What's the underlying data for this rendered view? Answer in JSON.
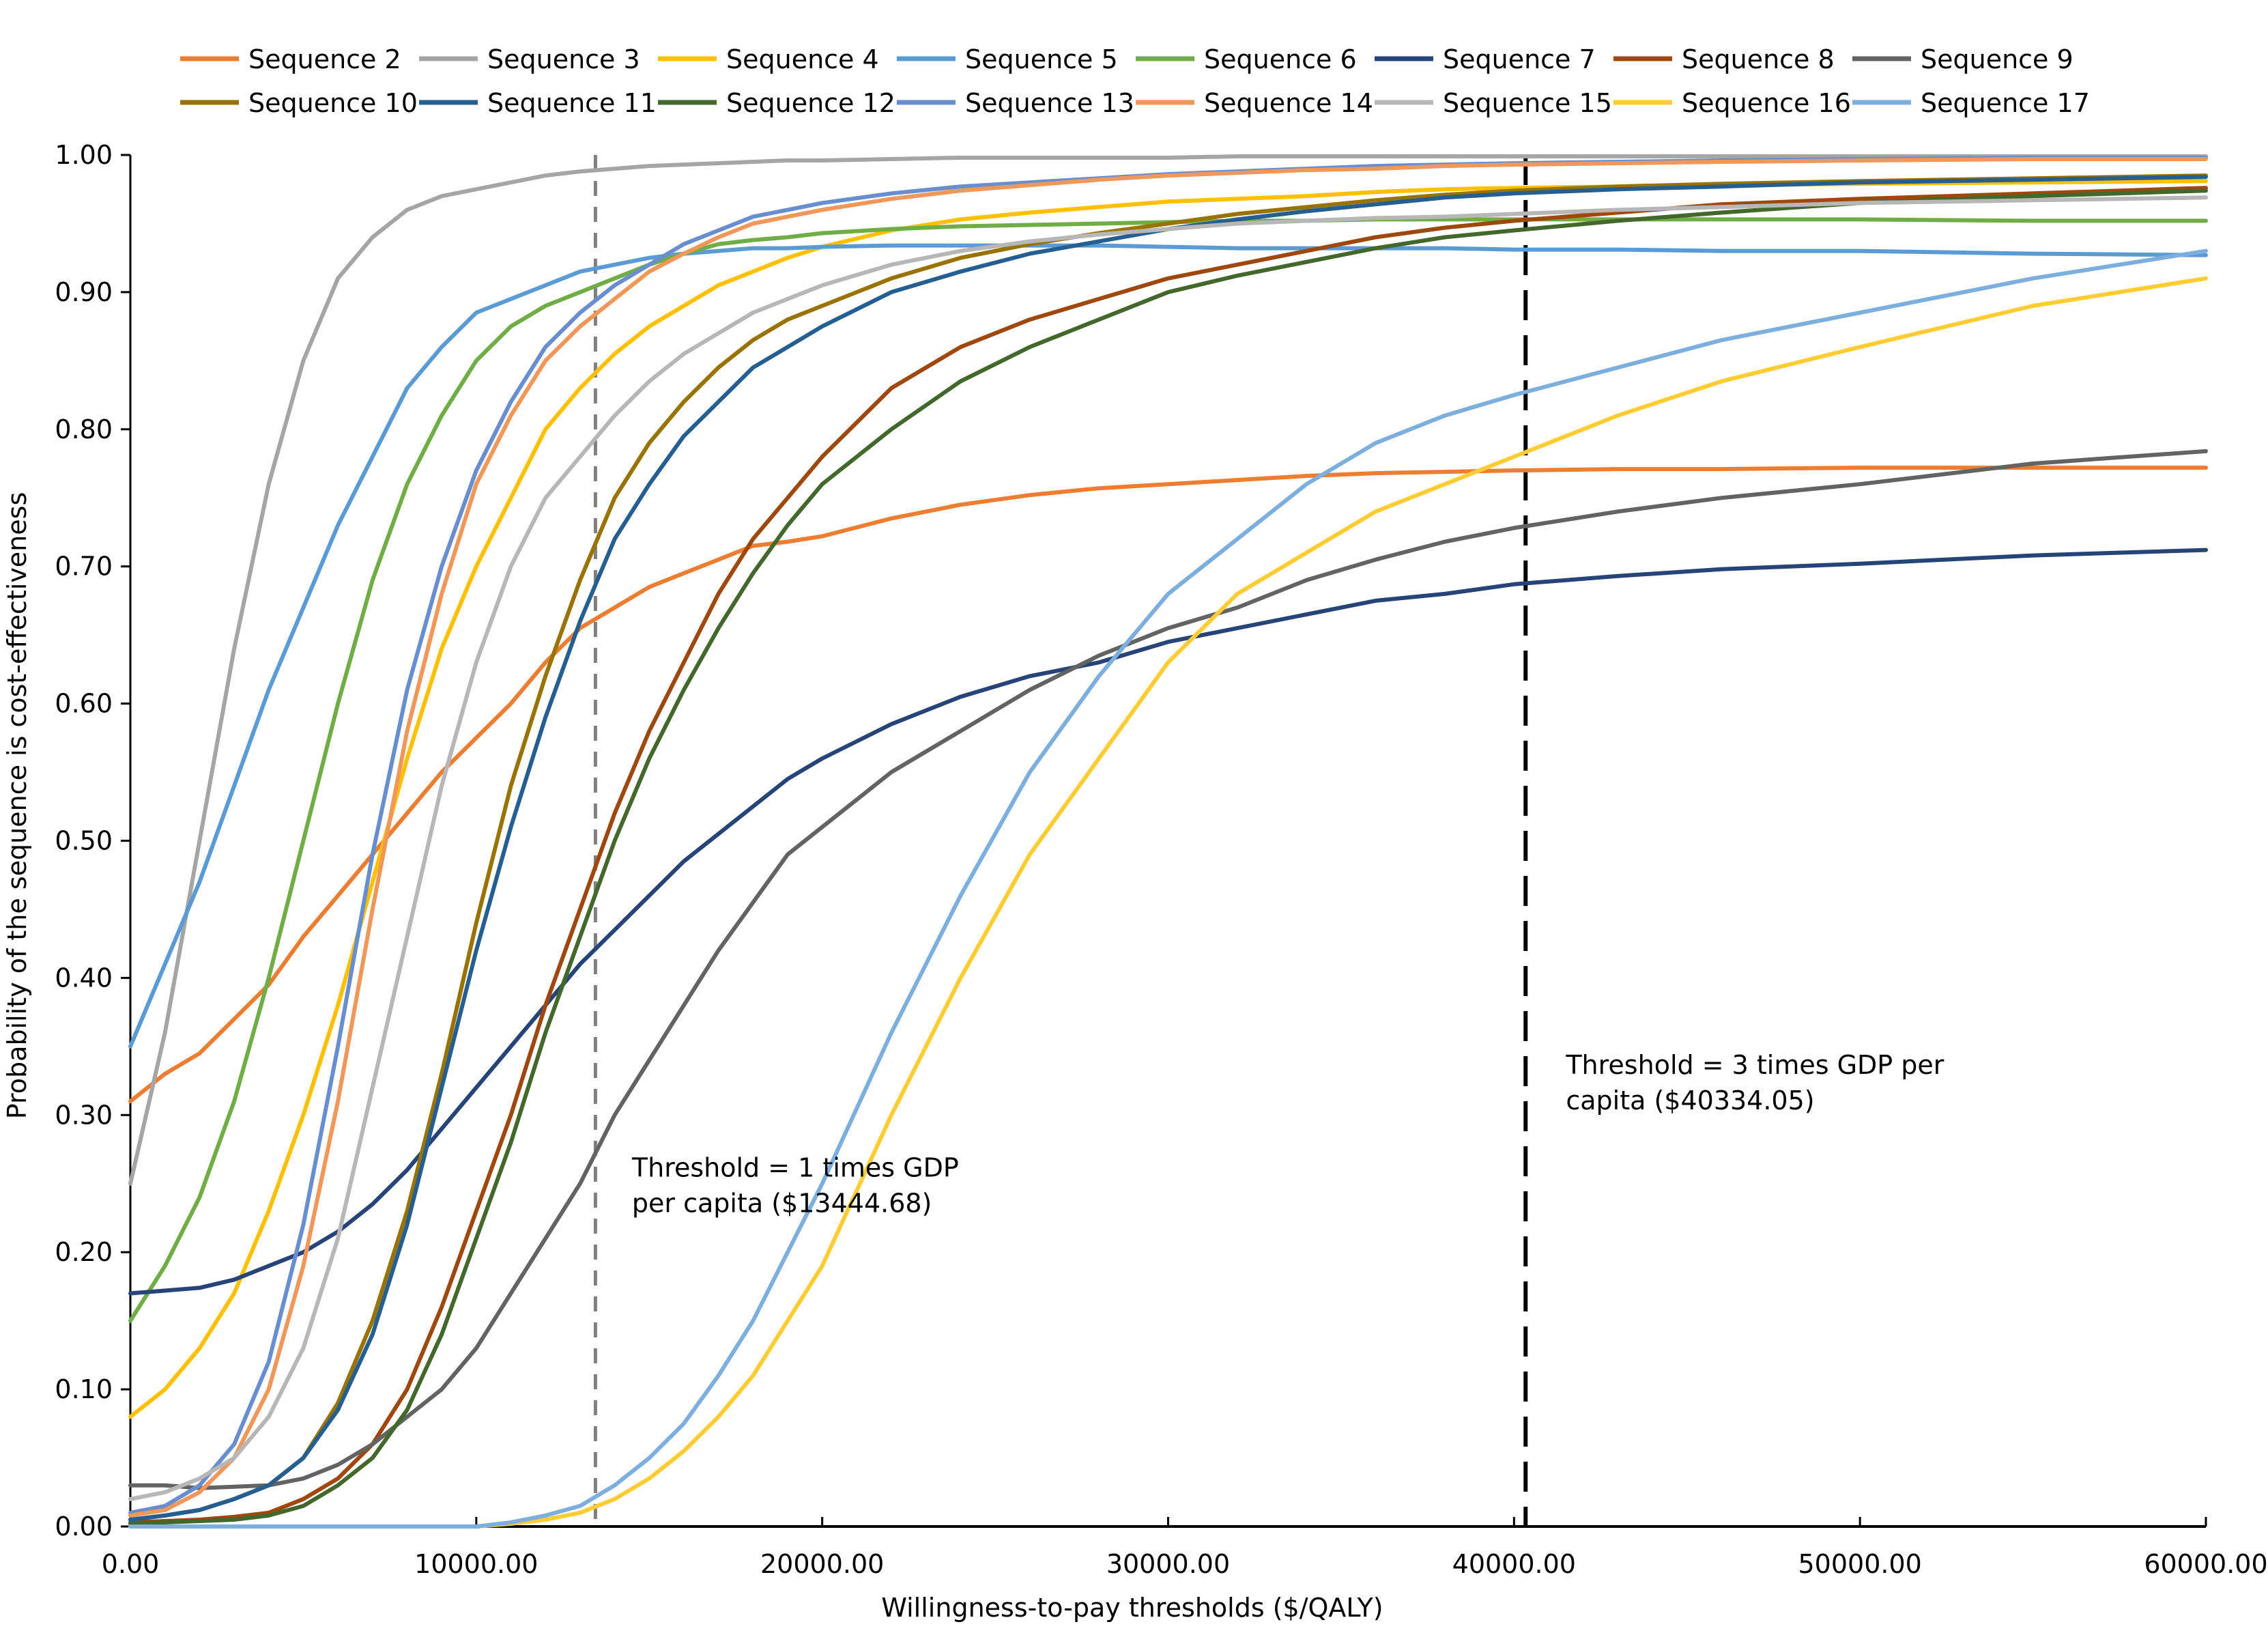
{
  "chart_data": {
    "type": "line",
    "title": "",
    "xlabel": "Willingness-to-pay thresholds ($/QALY)",
    "ylabel": "Probability of the sequence is cost-effectiveness",
    "xlim": [
      0,
      60000
    ],
    "ylim": [
      0,
      1
    ],
    "x_ticks": [
      0,
      10000,
      20000,
      30000,
      40000,
      50000,
      60000
    ],
    "x_tick_labels": [
      "0.00",
      "10000.00",
      "20000.00",
      "30000.00",
      "40000.00",
      "50000.00",
      "60000.00"
    ],
    "y_ticks": [
      0,
      0.1,
      0.2,
      0.3,
      0.4,
      0.5,
      0.6,
      0.7,
      0.8,
      0.9,
      1.0
    ],
    "y_tick_labels": [
      "0.00",
      "0.10",
      "0.20",
      "0.30",
      "0.40",
      "0.50",
      "0.60",
      "0.70",
      "0.80",
      "0.90",
      "1.00"
    ],
    "grid": false,
    "legend_position": "top",
    "x": [
      0,
      1000,
      2000,
      3000,
      4000,
      5000,
      6000,
      7000,
      8000,
      9000,
      10000,
      11000,
      12000,
      13000,
      14000,
      15000,
      16000,
      17000,
      18000,
      19000,
      20000,
      22000,
      24000,
      26000,
      28000,
      30000,
      32000,
      34000,
      36000,
      38000,
      40000,
      43000,
      46000,
      50000,
      55000,
      60000
    ],
    "series": [
      {
        "name": "Sequence 2",
        "color": "#ED7D31",
        "values": [
          0.31,
          0.33,
          0.345,
          0.37,
          0.395,
          0.43,
          0.46,
          0.49,
          0.52,
          0.55,
          0.575,
          0.6,
          0.63,
          0.655,
          0.67,
          0.685,
          0.695,
          0.705,
          0.715,
          0.718,
          0.722,
          0.735,
          0.745,
          0.752,
          0.757,
          0.76,
          0.763,
          0.766,
          0.768,
          0.769,
          0.77,
          0.771,
          0.771,
          0.772,
          0.772,
          0.772
        ]
      },
      {
        "name": "Sequence 3",
        "color": "#A5A5A5",
        "values": [
          0.25,
          0.36,
          0.5,
          0.64,
          0.76,
          0.85,
          0.91,
          0.94,
          0.96,
          0.97,
          0.975,
          0.98,
          0.985,
          0.988,
          0.99,
          0.992,
          0.993,
          0.994,
          0.995,
          0.996,
          0.996,
          0.997,
          0.998,
          0.998,
          0.998,
          0.998,
          0.999,
          0.999,
          0.999,
          0.999,
          0.999,
          0.999,
          0.999,
          0.999,
          0.999,
          0.999
        ]
      },
      {
        "name": "Sequence 4",
        "color": "#FFC000",
        "values": [
          0.08,
          0.1,
          0.13,
          0.17,
          0.23,
          0.3,
          0.38,
          0.47,
          0.56,
          0.64,
          0.7,
          0.75,
          0.8,
          0.83,
          0.855,
          0.875,
          0.89,
          0.905,
          0.915,
          0.925,
          0.933,
          0.945,
          0.953,
          0.958,
          0.962,
          0.966,
          0.968,
          0.97,
          0.973,
          0.975,
          0.976,
          0.977,
          0.978,
          0.979,
          0.98,
          0.981
        ]
      },
      {
        "name": "Sequence 5",
        "color": "#5B9BD5",
        "values": [
          0.35,
          0.41,
          0.47,
          0.54,
          0.61,
          0.67,
          0.73,
          0.78,
          0.83,
          0.86,
          0.885,
          0.895,
          0.905,
          0.915,
          0.92,
          0.925,
          0.928,
          0.93,
          0.932,
          0.932,
          0.933,
          0.934,
          0.934,
          0.934,
          0.934,
          0.933,
          0.932,
          0.932,
          0.932,
          0.932,
          0.931,
          0.931,
          0.93,
          0.93,
          0.928,
          0.927
        ]
      },
      {
        "name": "Sequence 6",
        "color": "#70AD47",
        "values": [
          0.15,
          0.19,
          0.24,
          0.31,
          0.4,
          0.5,
          0.6,
          0.69,
          0.76,
          0.81,
          0.85,
          0.875,
          0.89,
          0.9,
          0.91,
          0.92,
          0.928,
          0.935,
          0.938,
          0.94,
          0.943,
          0.946,
          0.948,
          0.949,
          0.95,
          0.951,
          0.952,
          0.952,
          0.953,
          0.953,
          0.953,
          0.953,
          0.953,
          0.953,
          0.952,
          0.952
        ]
      },
      {
        "name": "Sequence 7",
        "color": "#264478",
        "values": [
          0.17,
          0.172,
          0.174,
          0.18,
          0.19,
          0.2,
          0.215,
          0.235,
          0.26,
          0.29,
          0.32,
          0.35,
          0.38,
          0.41,
          0.435,
          0.46,
          0.485,
          0.505,
          0.525,
          0.545,
          0.56,
          0.585,
          0.605,
          0.62,
          0.63,
          0.645,
          0.655,
          0.665,
          0.675,
          0.68,
          0.687,
          0.693,
          0.698,
          0.702,
          0.708,
          0.712
        ]
      },
      {
        "name": "Sequence 8",
        "color": "#9E480E",
        "values": [
          0.003,
          0.004,
          0.005,
          0.007,
          0.01,
          0.02,
          0.035,
          0.06,
          0.1,
          0.16,
          0.23,
          0.3,
          0.38,
          0.45,
          0.52,
          0.58,
          0.63,
          0.68,
          0.72,
          0.75,
          0.78,
          0.83,
          0.86,
          0.88,
          0.895,
          0.91,
          0.92,
          0.93,
          0.94,
          0.947,
          0.952,
          0.958,
          0.964,
          0.968,
          0.972,
          0.976
        ]
      },
      {
        "name": "Sequence 9",
        "color": "#636363",
        "values": [
          0.03,
          0.03,
          0.028,
          0.029,
          0.03,
          0.035,
          0.045,
          0.06,
          0.08,
          0.1,
          0.13,
          0.17,
          0.21,
          0.25,
          0.3,
          0.34,
          0.38,
          0.42,
          0.455,
          0.49,
          0.51,
          0.55,
          0.58,
          0.61,
          0.635,
          0.655,
          0.67,
          0.69,
          0.705,
          0.718,
          0.728,
          0.74,
          0.75,
          0.76,
          0.775,
          0.784
        ]
      },
      {
        "name": "Sequence 10",
        "color": "#997300",
        "values": [
          0.005,
          0.008,
          0.012,
          0.02,
          0.03,
          0.05,
          0.09,
          0.15,
          0.23,
          0.33,
          0.44,
          0.54,
          0.62,
          0.69,
          0.75,
          0.79,
          0.82,
          0.845,
          0.865,
          0.88,
          0.89,
          0.91,
          0.925,
          0.935,
          0.943,
          0.95,
          0.957,
          0.962,
          0.967,
          0.971,
          0.974,
          0.977,
          0.979,
          0.981,
          0.983,
          0.985
        ]
      },
      {
        "name": "Sequence 11",
        "color": "#255E91",
        "values": [
          0.005,
          0.008,
          0.012,
          0.02,
          0.03,
          0.05,
          0.085,
          0.14,
          0.22,
          0.32,
          0.42,
          0.51,
          0.59,
          0.66,
          0.72,
          0.76,
          0.795,
          0.82,
          0.845,
          0.86,
          0.875,
          0.9,
          0.915,
          0.928,
          0.937,
          0.946,
          0.953,
          0.959,
          0.964,
          0.969,
          0.972,
          0.975,
          0.977,
          0.98,
          0.982,
          0.984
        ]
      },
      {
        "name": "Sequence 12",
        "color": "#43682B",
        "values": [
          0.002,
          0.003,
          0.004,
          0.005,
          0.008,
          0.015,
          0.03,
          0.05,
          0.085,
          0.14,
          0.21,
          0.28,
          0.36,
          0.43,
          0.5,
          0.56,
          0.61,
          0.655,
          0.695,
          0.73,
          0.76,
          0.8,
          0.835,
          0.86,
          0.88,
          0.9,
          0.912,
          0.922,
          0.932,
          0.94,
          0.945,
          0.952,
          0.958,
          0.965,
          0.97,
          0.974
        ]
      },
      {
        "name": "Sequence 13",
        "color": "#698ED0",
        "values": [
          0.01,
          0.015,
          0.03,
          0.06,
          0.12,
          0.22,
          0.35,
          0.49,
          0.61,
          0.7,
          0.77,
          0.82,
          0.86,
          0.885,
          0.905,
          0.92,
          0.935,
          0.945,
          0.955,
          0.96,
          0.965,
          0.972,
          0.977,
          0.98,
          0.983,
          0.986,
          0.988,
          0.99,
          0.992,
          0.993,
          0.994,
          0.995,
          0.996,
          0.997,
          0.998,
          0.998
        ]
      },
      {
        "name": "Sequence 14",
        "color": "#F1975A",
        "values": [
          0.008,
          0.012,
          0.025,
          0.05,
          0.1,
          0.19,
          0.31,
          0.45,
          0.58,
          0.68,
          0.76,
          0.81,
          0.85,
          0.875,
          0.895,
          0.915,
          0.928,
          0.94,
          0.95,
          0.955,
          0.96,
          0.968,
          0.974,
          0.978,
          0.982,
          0.985,
          0.987,
          0.989,
          0.99,
          0.992,
          0.993,
          0.994,
          0.995,
          0.996,
          0.997,
          0.997
        ]
      },
      {
        "name": "Sequence 15",
        "color": "#B7B7B7",
        "values": [
          0.02,
          0.025,
          0.035,
          0.05,
          0.08,
          0.13,
          0.21,
          0.32,
          0.43,
          0.54,
          0.63,
          0.7,
          0.75,
          0.78,
          0.81,
          0.835,
          0.855,
          0.87,
          0.885,
          0.895,
          0.905,
          0.92,
          0.93,
          0.937,
          0.942,
          0.946,
          0.95,
          0.952,
          0.954,
          0.955,
          0.957,
          0.96,
          0.962,
          0.965,
          0.967,
          0.969
        ]
      },
      {
        "name": "Sequence 16",
        "color": "#FFCD33",
        "values": [
          0,
          0,
          0,
          0,
          0,
          0,
          0,
          0,
          0,
          0,
          0,
          0.002,
          0.005,
          0.01,
          0.02,
          0.035,
          0.055,
          0.08,
          0.11,
          0.15,
          0.19,
          0.3,
          0.4,
          0.49,
          0.56,
          0.63,
          0.68,
          0.71,
          0.74,
          0.76,
          0.78,
          0.81,
          0.835,
          0.86,
          0.89,
          0.91
        ]
      },
      {
        "name": "Sequence 17",
        "color": "#7CAFDD",
        "values": [
          0,
          0,
          0,
          0,
          0,
          0,
          0,
          0,
          0,
          0,
          0,
          0.003,
          0.008,
          0.015,
          0.03,
          0.05,
          0.075,
          0.11,
          0.15,
          0.2,
          0.25,
          0.36,
          0.46,
          0.55,
          0.62,
          0.68,
          0.72,
          0.76,
          0.79,
          0.81,
          0.825,
          0.845,
          0.865,
          0.885,
          0.91,
          0.93
        ]
      }
    ],
    "reference_lines": [
      {
        "name": "threshold-1x-gdp",
        "x": 13444.68,
        "style": "dashed",
        "color": "#808080",
        "label": "Threshold = 1 times GDP per capita ($13444.68)",
        "label_lines": [
          "Threshold = 1 times GDP",
          "per capita ($13444.68)"
        ]
      },
      {
        "name": "threshold-3x-gdp",
        "x": 40334.05,
        "style": "dashed",
        "color": "#000000",
        "label": "Threshold = 3 times GDP per capita ($40334.05)",
        "label_lines": [
          "Threshold = 3 times GDP per",
          "capita ($40334.05)"
        ]
      }
    ],
    "annotations": [
      {
        "text_lines": [
          "Threshold = 1 times GDP",
          "per capita ($13444.68)"
        ],
        "anchor_x": 14500,
        "anchor_y": 0.255
      },
      {
        "text_lines": [
          "Threshold = 3 times GDP per",
          "capita ($40334.05)"
        ],
        "anchor_x": 41500,
        "anchor_y": 0.33
      }
    ]
  }
}
